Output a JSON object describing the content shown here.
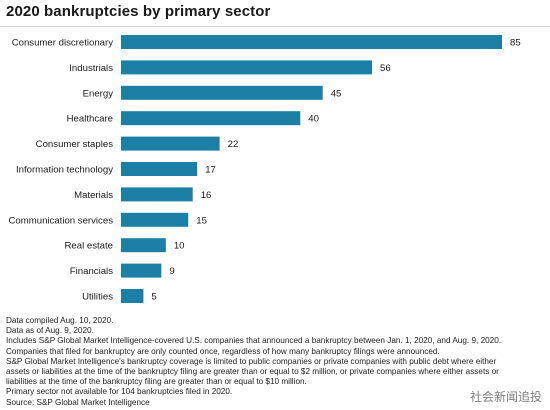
{
  "header": {
    "title": "2020 bankruptcies by primary sector"
  },
  "chart_data": {
    "type": "bar",
    "orientation": "horizontal",
    "title": "2020 bankruptcies by primary sector",
    "categories": [
      "Consumer discretionary",
      "Industrials",
      "Energy",
      "Healthcare",
      "Consumer staples",
      "Information technology",
      "Materials",
      "Communication services",
      "Real estate",
      "Financials",
      "Utilities"
    ],
    "values": [
      85,
      56,
      45,
      40,
      22,
      17,
      16,
      15,
      10,
      9,
      5
    ],
    "xlim": [
      0,
      85
    ],
    "grid": false,
    "bar_color": "#1b7fa6",
    "data_labels": true
  },
  "notes": [
    "Data compiled Aug. 10, 2020.",
    "Data as of Aug. 9, 2020.",
    "Includes S&P Global Market Intelligence-covered U.S. companies that announced a bankruptcy between Jan. 1, 2020, and Aug. 9, 2020.",
    "Companies that filed for bankruptcy are only counted once, regardless of how many bankruptcy filings were announced.",
    "S&P Global Market Intelligence's bankruptcy coverage is limited to public companies or private companies with public debt where either",
    "assets or liabilities at the time of the bankruptcy filing are greater than or equal to $2 million, or private companies where either assets or",
    "liabilities at the time of the bankruptcy filing are greater than or equal to $10 million.",
    "Primary sector not available for 104 bankruptcies filed in 2020.",
    "Source: S&P Global Market Intelligence"
  ],
  "watermark": "社会新闻追投"
}
